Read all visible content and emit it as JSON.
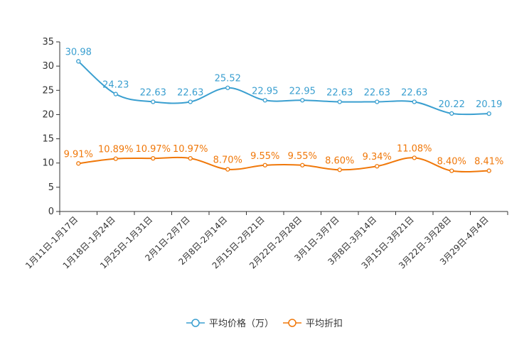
{
  "chart_data": {
    "type": "line",
    "title": "",
    "xlabel": "",
    "ylabel": "",
    "ylim": [
      0,
      35
    ],
    "yticks": [
      0,
      5,
      10,
      15,
      20,
      25,
      30,
      35
    ],
    "grid": false,
    "legend_position": "bottom-center",
    "categories": [
      "1月11日-1月17日",
      "1月18日-1月24日",
      "1月25日-1月31日",
      "2月1日-2月7日",
      "2月8日-2月14日",
      "2月15日-2月21日",
      "2月22日-2月28日",
      "3月1日-3月7日",
      "3月8日-3月14日",
      "3月15日-3月21日",
      "3月22日-3月28日",
      "3月29日-4月4日"
    ],
    "series": [
      {
        "name": "平均价格（万）",
        "color": "#3a9fd0",
        "values": [
          30.98,
          24.23,
          22.63,
          22.63,
          25.52,
          22.95,
          22.95,
          22.63,
          22.63,
          22.63,
          20.22,
          20.19
        ],
        "labels": [
          "30.98",
          "24.23",
          "22.63",
          "22.63",
          "25.52",
          "22.95",
          "22.95",
          "22.63",
          "22.63",
          "22.63",
          "20.22",
          "20.19"
        ]
      },
      {
        "name": "平均折扣",
        "color": "#f0780a",
        "values": [
          9.91,
          10.89,
          10.97,
          10.97,
          8.7,
          9.55,
          9.55,
          8.6,
          9.34,
          11.08,
          8.4,
          8.41
        ],
        "labels": [
          "9.91%",
          "10.89%",
          "10.97%",
          "10.97%",
          "8.70%",
          "9.55%",
          "9.55%",
          "8.60%",
          "9.34%",
          "11.08%",
          "8.40%",
          "8.41%"
        ]
      }
    ]
  }
}
